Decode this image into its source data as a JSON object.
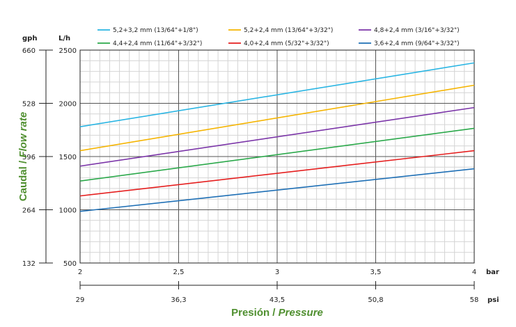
{
  "chart_data": {
    "type": "line",
    "y_axis": {
      "title_es": "Caudal / ",
      "title_en": "Flow rate",
      "unit_lh": "L/h",
      "unit_gph": "gph",
      "range_lh": [
        500,
        2500
      ],
      "ticks_lh": [
        "500",
        "1000",
        "1500",
        "2000",
        "2500"
      ],
      "ticks_gph": [
        "132",
        "264",
        "396",
        "528",
        "660"
      ]
    },
    "x_axis": {
      "title_es": "Presión / ",
      "title_en": "Pressure",
      "unit_bar": "bar",
      "unit_psi": "psi",
      "range_bar": [
        2,
        4
      ],
      "ticks_bar": [
        "2",
        "2,5",
        "3",
        "3,5",
        "4"
      ],
      "ticks_psi": [
        "29",
        "36,3",
        "43,5",
        "50,8",
        "58"
      ]
    },
    "grid": true,
    "legend_position": "top",
    "series": [
      {
        "name": "5,2+3,2 mm (13/64\"+1/8\")",
        "color": "#29b5e3",
        "x": [
          2,
          4
        ],
        "y": [
          1780,
          2380
        ]
      },
      {
        "name": "5,2+2,4 mm (13/64\"+3/32\")",
        "color": "#f5b400",
        "x": [
          2,
          4
        ],
        "y": [
          1555,
          2170
        ]
      },
      {
        "name": "4,8+2,4 mm (3/16\"+3/32\")",
        "color": "#7b35a8",
        "x": [
          2,
          4
        ],
        "y": [
          1410,
          1960
        ]
      },
      {
        "name": "4,4+2,4 mm (11/64\"+3/32\")",
        "color": "#2aa84a",
        "x": [
          2,
          4
        ],
        "y": [
          1270,
          1765
        ]
      },
      {
        "name": "4,0+2,4 mm (5/32\"+3/32\")",
        "color": "#e51e1e",
        "x": [
          2,
          4
        ],
        "y": [
          1130,
          1555
        ]
      },
      {
        "name": "3,6+2,4 mm (9/64\"+3/32\")",
        "color": "#1e6fb5",
        "x": [
          2,
          4
        ],
        "y": [
          985,
          1385
        ]
      }
    ]
  }
}
